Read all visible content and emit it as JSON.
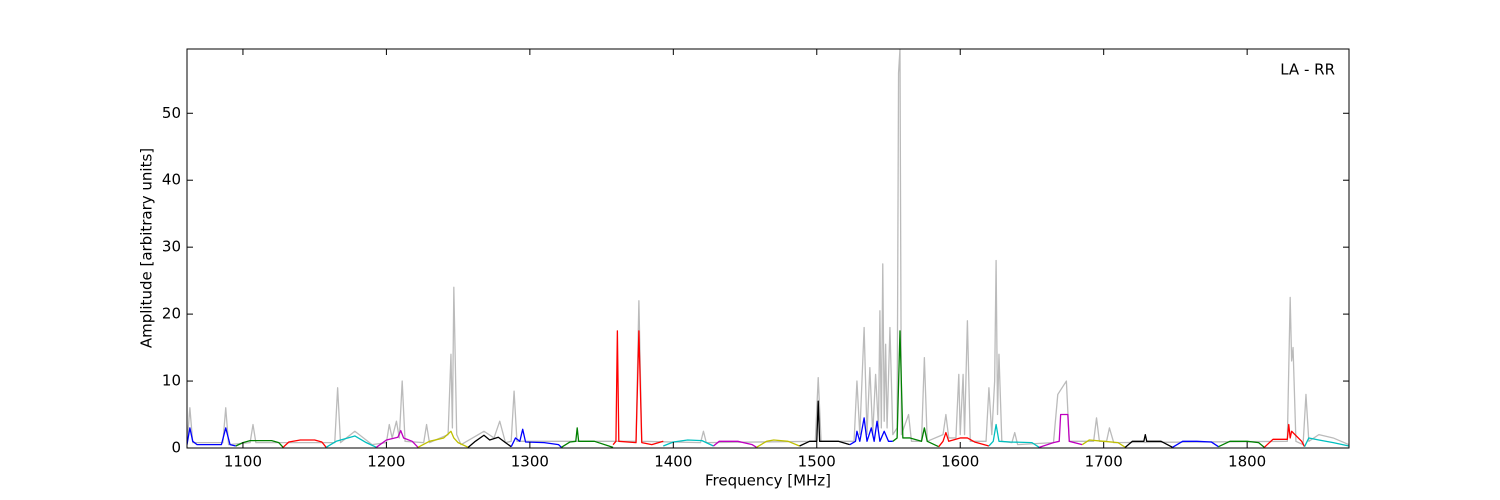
{
  "chart_data": {
    "type": "line",
    "annotation": "LA - RR",
    "xlabel": "Frequency [MHz]",
    "ylabel": "Amplitude [arbitrary units]",
    "xlim": [
      1061,
      1871
    ],
    "ylim": [
      0,
      59.6
    ],
    "xticks": [
      1100,
      1200,
      1300,
      1400,
      1500,
      1600,
      1700,
      1800
    ],
    "yticks": [
      0,
      10,
      20,
      30,
      40,
      50
    ],
    "series": [
      {
        "color": "#bbbbbb",
        "x": [
          1061,
          1063,
          1065,
          1086,
          1088,
          1090,
          1105,
          1107,
          1109,
          1164,
          1166,
          1168,
          1178,
          1190,
          1200,
          1202,
          1204,
          1207,
          1209,
          1211,
          1213,
          1226,
          1228,
          1230,
          1243,
          1245,
          1246,
          1247,
          1249,
          1252,
          1268,
          1275,
          1279,
          1283,
          1287,
          1289,
          1291,
          1374,
          1376,
          1378,
          1419,
          1421,
          1423,
          1499,
          1501,
          1503,
          1526,
          1528,
          1530,
          1533,
          1535,
          1537,
          1539,
          1541,
          1543,
          1544,
          1545,
          1546,
          1547,
          1548,
          1549,
          1551,
          1553,
          1556,
          1557,
          1558,
          1559,
          1564,
          1566,
          1573,
          1575,
          1577,
          1588,
          1590,
          1592,
          1597,
          1599,
          1600,
          1602,
          1603,
          1605,
          1607,
          1618,
          1620,
          1622,
          1624,
          1625,
          1626,
          1627,
          1629,
          1636,
          1638,
          1640,
          1665,
          1668,
          1674,
          1676,
          1693,
          1695,
          1697,
          1702,
          1704,
          1707,
          1828,
          1830,
          1831,
          1832,
          1834,
          1839,
          1841,
          1843,
          1850,
          1860,
          1871
        ],
        "values": [
          0.5,
          6,
          0.8,
          0.8,
          6,
          0.5,
          0.8,
          3.5,
          0.8,
          0.8,
          9,
          0.8,
          2.5,
          0.5,
          0.8,
          3.5,
          1.5,
          4,
          1.5,
          10,
          1,
          0.8,
          3.5,
          0.8,
          2,
          14,
          3,
          24,
          2,
          0.5,
          2.5,
          1.5,
          4,
          0.8,
          1,
          8.5,
          1,
          1,
          22,
          1,
          0.8,
          2.5,
          0.8,
          1,
          10.5,
          1,
          1,
          10,
          2,
          18,
          2,
          12,
          2,
          11,
          3,
          20.5,
          3,
          27.5,
          4,
          15.5,
          3,
          18,
          2,
          3,
          56,
          59.6,
          2,
          5,
          1,
          1,
          13.5,
          1,
          2,
          5,
          1.5,
          1.5,
          11,
          2,
          11,
          2,
          19,
          1,
          1,
          9,
          2,
          10,
          28,
          5,
          14,
          1,
          0.8,
          2.3,
          0.5,
          0.8,
          8,
          10,
          1,
          1,
          4.5,
          1,
          1,
          3,
          0.8,
          1,
          22.5,
          13,
          15,
          1,
          0.5,
          8,
          1,
          2,
          1.5,
          0.5
        ]
      },
      {
        "color": "#0000ff",
        "x": [
          1061,
          1063,
          1065,
          1068,
          1085,
          1088,
          1091,
          1095
        ],
        "values": [
          0.5,
          3,
          1,
          0.5,
          0.5,
          3,
          0.5,
          0.3
        ]
      },
      {
        "color": "#008000",
        "x": [
          1095,
          1100,
          1105,
          1120,
          1125,
          1128
        ],
        "values": [
          0.3,
          0.8,
          1.1,
          1.1,
          0.8,
          0.1
        ]
      },
      {
        "color": "#ff0000",
        "x": [
          1128,
          1132,
          1140,
          1150,
          1155,
          1158
        ],
        "values": [
          0.1,
          0.9,
          1.2,
          1.2,
          0.9,
          0.1
        ]
      },
      {
        "color": "#00bfbf",
        "x": [
          1158,
          1165,
          1178,
          1186,
          1193
        ],
        "values": [
          0.1,
          1,
          1.8,
          0.8,
          0.1
        ]
      },
      {
        "color": "#bf00bf",
        "x": [
          1193,
          1200,
          1208,
          1210,
          1212,
          1218,
          1222
        ],
        "values": [
          0.1,
          1.2,
          1.6,
          2.6,
          1.5,
          1,
          0.1
        ]
      },
      {
        "color": "#bfbf00",
        "x": [
          1222,
          1230,
          1240,
          1245,
          1247,
          1250,
          1257
        ],
        "values": [
          0.1,
          1,
          1.5,
          2.5,
          1.5,
          0.8,
          0.1
        ]
      },
      {
        "color": "#000000",
        "x": [
          1257,
          1262,
          1268,
          1272,
          1278,
          1283,
          1287
        ],
        "values": [
          0.1,
          1,
          1.9,
          1.2,
          1.6,
          0.8,
          0.2
        ]
      },
      {
        "color": "#0000ff",
        "x": [
          1287,
          1290,
          1293,
          1295,
          1297,
          1310,
          1320,
          1322
        ],
        "values": [
          0.2,
          1.5,
          1,
          2.8,
          0.9,
          0.8,
          0.5,
          0.1
        ]
      },
      {
        "color": "#008000",
        "x": [
          1322,
          1328,
          1332,
          1333,
          1334,
          1345,
          1358
        ],
        "values": [
          0.1,
          0.9,
          1,
          3,
          1,
          1,
          0.1
        ]
      },
      {
        "color": "#ff0000",
        "x": [
          1358,
          1360,
          1361,
          1362,
          1374,
          1376,
          1378,
          1385,
          1393
        ],
        "values": [
          0.5,
          1,
          17.5,
          1,
          0.8,
          17.5,
          0.8,
          0.5,
          1
        ]
      },
      {
        "color": "#00bfbf",
        "x": [
          1393,
          1400,
          1410,
          1420,
          1428
        ],
        "values": [
          0.3,
          0.9,
          1.2,
          1.1,
          0.3
        ]
      },
      {
        "color": "#bf00bf",
        "x": [
          1428,
          1432,
          1445,
          1455,
          1458
        ],
        "values": [
          0.3,
          1,
          1,
          0.5,
          0.1
        ]
      },
      {
        "color": "#bfbf00",
        "x": [
          1458,
          1465,
          1470,
          1480,
          1488
        ],
        "values": [
          0.1,
          1,
          1.2,
          1,
          0.3
        ]
      },
      {
        "color": "#000000",
        "x": [
          1488,
          1495,
          1500,
          1501,
          1502,
          1515,
          1523
        ],
        "values": [
          0.3,
          1,
          1,
          7,
          1,
          1,
          0.5
        ]
      },
      {
        "color": "#0000ff",
        "x": [
          1523,
          1527,
          1528,
          1530,
          1533,
          1535,
          1538,
          1540,
          1542,
          1544,
          1547,
          1550,
          1553
        ],
        "values": [
          0.5,
          1,
          2.5,
          1,
          4.5,
          1,
          3,
          1,
          4,
          1,
          2.5,
          1,
          1
        ]
      },
      {
        "color": "#008000",
        "x": [
          1553,
          1556,
          1558,
          1560,
          1565,
          1573,
          1575,
          1577,
          1585
        ],
        "values": [
          1,
          1.5,
          17.5,
          1.5,
          1.5,
          1,
          3,
          1,
          0.2
        ]
      },
      {
        "color": "#ff0000",
        "x": [
          1585,
          1588,
          1590,
          1592,
          1600,
          1605,
          1610,
          1620
        ],
        "values": [
          0.2,
          1,
          2.3,
          1,
          1.5,
          1.5,
          0.9,
          0.3
        ]
      },
      {
        "color": "#00bfbf",
        "x": [
          1620,
          1623,
          1625,
          1627,
          1635,
          1650,
          1655
        ],
        "values": [
          0.3,
          1,
          3.5,
          1,
          0.9,
          0.8,
          0.1
        ]
      },
      {
        "color": "#bf00bf",
        "x": [
          1655,
          1665,
          1669,
          1670,
          1675,
          1676,
          1685
        ],
        "values": [
          0.1,
          0.8,
          1,
          5,
          5,
          1,
          0.5
        ]
      },
      {
        "color": "#bfbf00",
        "x": [
          1685,
          1690,
          1700,
          1710,
          1715
        ],
        "values": [
          0.5,
          1.2,
          1,
          0.8,
          0.1
        ]
      },
      {
        "color": "#000000",
        "x": [
          1715,
          1720,
          1728,
          1729,
          1730,
          1740,
          1748
        ],
        "values": [
          0.1,
          1,
          1,
          2,
          1,
          1,
          0.1
        ]
      },
      {
        "color": "#0000ff",
        "x": [
          1748,
          1755,
          1765,
          1775,
          1780
        ],
        "values": [
          0.1,
          1,
          1,
          0.9,
          0.2
        ]
      },
      {
        "color": "#008000",
        "x": [
          1780,
          1788,
          1800,
          1808,
          1812
        ],
        "values": [
          0.2,
          1,
          1,
          0.8,
          0.1
        ]
      },
      {
        "color": "#ff0000",
        "x": [
          1812,
          1818,
          1828,
          1829,
          1830,
          1831,
          1838,
          1840
        ],
        "values": [
          0.1,
          1.3,
          1.3,
          3.5,
          1.5,
          2.5,
          1,
          0.2
        ]
      },
      {
        "color": "#00bfbf",
        "x": [
          1840,
          1843,
          1850,
          1860,
          1871
        ],
        "values": [
          0.2,
          1.5,
          1.2,
          0.8,
          0.3
        ]
      }
    ]
  }
}
